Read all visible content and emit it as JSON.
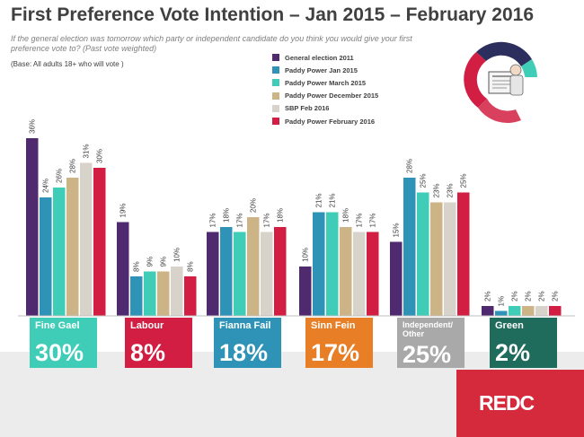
{
  "header": {
    "title": "First Preference Vote Intention – Jan 2015 – February 2016",
    "subtitle": "If the general election was tomorrow which party or independent candidate do you think you would give your first preference vote to? (Past vote weighted)",
    "base": "(Base: All adults 18+ who will vote )"
  },
  "chart_data": {
    "type": "bar",
    "title": "First Preference Vote Intention – Jan 2015 – February 2016",
    "categories": [
      "Fine Gael",
      "Labour",
      "Fianna Fail",
      "Sinn Fein",
      "Independent/ Other",
      "Green"
    ],
    "ylim": [
      0,
      40
    ],
    "unit": "%",
    "grid": false,
    "legend_position": "top-right",
    "series": [
      {
        "name": "General election 2011",
        "color": "#4f2a6e",
        "values": [
          36,
          19,
          17,
          10,
          15,
          2
        ]
      },
      {
        "name": "Paddy Power Jan 2015",
        "color": "#2e93b7",
        "values": [
          24,
          8,
          18,
          21,
          28,
          1
        ]
      },
      {
        "name": "Paddy Power March 2015",
        "color": "#3fcdb7",
        "values": [
          26,
          9,
          17,
          21,
          25,
          2
        ]
      },
      {
        "name": "Paddy Power December 2015",
        "color": "#cdb487",
        "values": [
          28,
          9,
          20,
          18,
          23,
          2
        ]
      },
      {
        "name": "SBP Feb 2016",
        "color": "#d8d3ca",
        "values": [
          31,
          10,
          17,
          17,
          23,
          2
        ]
      },
      {
        "name": "Paddy Power February 2016",
        "color": "#d11e42",
        "values": [
          30,
          8,
          18,
          17,
          25,
          2
        ]
      }
    ]
  },
  "party_boxes": [
    {
      "name": "Fine Gael",
      "pct": "30%",
      "color": "#3fcdb7"
    },
    {
      "name": "Labour",
      "pct": "8%",
      "color": "#d11e42"
    },
    {
      "name": "Fianna Fail",
      "pct": "18%",
      "color": "#2e93b7"
    },
    {
      "name": "Sinn Fein",
      "pct": "17%",
      "color": "#e87f26"
    },
    {
      "name": "Independent/ Other",
      "pct": "25%",
      "color": "#a9a9a9"
    },
    {
      "name": "Green",
      "pct": "2%",
      "color": "#1f6b5c"
    }
  ],
  "brand": {
    "logo_text": "REDC",
    "color": "#d42a3c"
  }
}
